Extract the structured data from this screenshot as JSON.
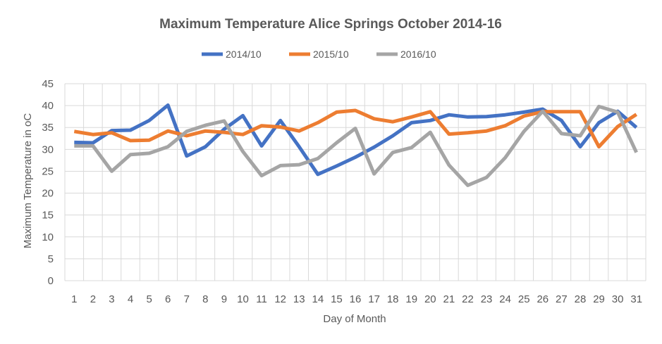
{
  "chart_data": {
    "type": "line",
    "title": "Maximum Temperature Alice Springs October 2014-16",
    "xlabel": "Day of Month",
    "ylabel": "Maximum Temperature in oC",
    "ylim": [
      0,
      45
    ],
    "yticks": [
      0,
      5,
      10,
      15,
      20,
      25,
      30,
      35,
      40,
      45
    ],
    "grid": true,
    "legend": "top",
    "categories": [
      "1",
      "2",
      "3",
      "4",
      "5",
      "6",
      "7",
      "8",
      "9",
      "10",
      "11",
      "12",
      "13",
      "14",
      "15",
      "16",
      "17",
      "18",
      "19",
      "20",
      "21",
      "22",
      "23",
      "24",
      "25",
      "26",
      "27",
      "28",
      "29",
      "30",
      "31"
    ],
    "series": [
      {
        "name": "2014/10",
        "color": "#4472c4",
        "values": [
          31.6,
          31.5,
          34.3,
          34.4,
          36.6,
          40.1,
          28.5,
          30.6,
          34.6,
          37.7,
          30.8,
          36.6,
          30.6,
          24.3,
          26.2,
          28.2,
          30.5,
          33.1,
          36.1,
          36.6,
          37.9,
          37.4,
          37.5,
          37.9,
          38.5,
          39.2,
          36.6,
          30.6,
          36.1,
          38.7,
          35.0
        ]
      },
      {
        "name": "2015/10",
        "color": "#ed7d31",
        "values": [
          34.1,
          33.4,
          33.8,
          32.0,
          32.1,
          34.2,
          33.1,
          34.2,
          33.9,
          33.4,
          35.4,
          35.1,
          34.2,
          36.1,
          38.5,
          38.9,
          37.0,
          36.3,
          37.4,
          38.6,
          33.5,
          33.8,
          34.2,
          35.4,
          37.6,
          38.6,
          38.6,
          38.6,
          30.6,
          35.2,
          38.0
        ]
      },
      {
        "name": "2016/10",
        "color": "#a5a5a5",
        "values": [
          30.8,
          30.8,
          25.0,
          28.8,
          29.1,
          30.6,
          34.1,
          35.5,
          36.5,
          29.5,
          24.0,
          26.3,
          26.5,
          27.9,
          31.5,
          34.8,
          24.4,
          29.3,
          30.4,
          33.9,
          26.4,
          21.8,
          23.6,
          28.1,
          34.1,
          38.7,
          33.6,
          33.1,
          39.8,
          38.5,
          29.3
        ]
      }
    ]
  }
}
